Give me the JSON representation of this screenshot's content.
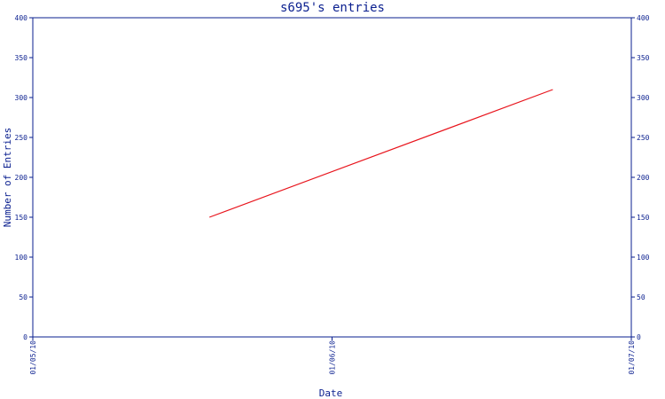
{
  "chart_data": {
    "type": "line",
    "title": "s695's entries",
    "xlabel": "Date",
    "ylabel": "Number of Entries",
    "x_tick_labels": [
      "01/05/10",
      "01/06/10",
      "01/07/10"
    ],
    "x_range": [
      "2010-05-01",
      "2010-07-01"
    ],
    "y_ticks": [
      0,
      50,
      100,
      150,
      200,
      250,
      300,
      350,
      400
    ],
    "ylim": [
      0,
      400
    ],
    "grid": false,
    "series": [
      {
        "x": [
          "2010-05-19",
          "2010-06-23"
        ],
        "values": [
          150,
          310
        ]
      }
    ],
    "colors": {
      "axis": "#0a1f8f",
      "line": "#e8141c"
    }
  }
}
